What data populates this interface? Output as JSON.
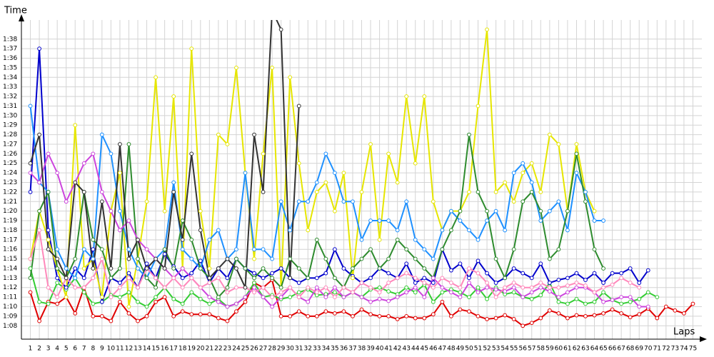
{
  "chart_data": {
    "type": "line",
    "y_label": "Time",
    "x_label": "Laps",
    "xlim": [
      0,
      76
    ],
    "ylim": [
      66.6,
      100
    ],
    "grid": true,
    "x": [
      1,
      2,
      3,
      4,
      5,
      6,
      7,
      8,
      9,
      10,
      11,
      12,
      13,
      14,
      15,
      16,
      17,
      18,
      19,
      20,
      21,
      22,
      23,
      24,
      25,
      26,
      27,
      28,
      29,
      30,
      31,
      32,
      33,
      34,
      35,
      36,
      37,
      38,
      39,
      40,
      41,
      42,
      43,
      44,
      45,
      46,
      47,
      48,
      49,
      50,
      51,
      52,
      53,
      54,
      55,
      56,
      57,
      58,
      59,
      60,
      61,
      62,
      63,
      64,
      65,
      66,
      67,
      68,
      69,
      70,
      71,
      72,
      73,
      74,
      75
    ],
    "xticks": [
      1,
      2,
      3,
      4,
      5,
      6,
      7,
      8,
      9,
      10,
      11,
      12,
      13,
      14,
      15,
      16,
      17,
      18,
      19,
      20,
      21,
      22,
      23,
      24,
      25,
      26,
      27,
      28,
      29,
      30,
      31,
      32,
      33,
      34,
      35,
      36,
      37,
      38,
      39,
      40,
      41,
      42,
      43,
      44,
      45,
      46,
      47,
      48,
      49,
      50,
      51,
      52,
      53,
      54,
      55,
      56,
      57,
      58,
      59,
      60,
      61,
      62,
      63,
      64,
      65,
      66,
      67,
      68,
      69,
      70,
      71,
      72,
      73,
      74,
      75
    ],
    "yticks": [
      {
        "value": 68,
        "label": "1:08"
      },
      {
        "value": 69,
        "label": "1:09"
      },
      {
        "value": 70,
        "label": "1:10"
      },
      {
        "value": 71,
        "label": "1:11"
      },
      {
        "value": 72,
        "label": "1:12"
      },
      {
        "value": 73,
        "label": "1:13"
      },
      {
        "value": 74,
        "label": "1:14"
      },
      {
        "value": 75,
        "label": "1:15"
      },
      {
        "value": 76,
        "label": "1:16"
      },
      {
        "value": 77,
        "label": "1:17"
      },
      {
        "value": 78,
        "label": "1:18"
      },
      {
        "value": 79,
        "label": "1:19"
      },
      {
        "value": 80,
        "label": "1:20"
      },
      {
        "value": 81,
        "label": "1:21"
      },
      {
        "value": 82,
        "label": "1:22"
      },
      {
        "value": 83,
        "label": "1:23"
      },
      {
        "value": 84,
        "label": "1:24"
      },
      {
        "value": 85,
        "label": "1:25"
      },
      {
        "value": 86,
        "label": "1:26"
      },
      {
        "value": 87,
        "label": "1:27"
      },
      {
        "value": 88,
        "label": "1:28"
      },
      {
        "value": 89,
        "label": "1:29"
      },
      {
        "value": 90,
        "label": "1:30"
      },
      {
        "value": 91,
        "label": "1:31"
      },
      {
        "value": 92,
        "label": "1:32"
      },
      {
        "value": 93,
        "label": "1:33"
      },
      {
        "value": 94,
        "label": "1:34"
      },
      {
        "value": 95,
        "label": "1:35"
      },
      {
        "value": 96,
        "label": "1:36"
      },
      {
        "value": 97,
        "label": "1:37"
      },
      {
        "value": 98,
        "label": "1:38"
      }
    ],
    "series": [
      {
        "color": "#e00000",
        "values": [
          71.5,
          68.5,
          70.5,
          70.3,
          71,
          69.3,
          72,
          69,
          69,
          68.5,
          70.5,
          69.3,
          68.5,
          69,
          70.5,
          71,
          69,
          69.5,
          69.2,
          69.2,
          69.2,
          68.8,
          68.5,
          69.5,
          70.5,
          72.5,
          72,
          72.8,
          69,
          69,
          69.5,
          69,
          69,
          69.5,
          69.3,
          69.5,
          69,
          69.7,
          69.2,
          69,
          69,
          68.7,
          69,
          68.8,
          68.8,
          69.2,
          70.5,
          69,
          69.7,
          69.5,
          69,
          68.7,
          68.8,
          69.1,
          68.7,
          68,
          68.3,
          68.8,
          69.6,
          69.3,
          68.8,
          69.1,
          69,
          69.1,
          69.3,
          69.7,
          69.3,
          68.9,
          69.2,
          69.8,
          68.8,
          70,
          69.6,
          69.3,
          70.3
        ]
      },
      {
        "color": "#33cc33",
        "values": [
          74,
          70.5,
          70.3,
          72.5,
          71.8,
          73,
          71.5,
          70.3,
          70.5,
          71.2,
          71,
          71.5,
          70.5,
          70,
          71,
          72,
          70.8,
          70.3,
          71.5,
          70.8,
          70.3,
          70.8,
          70,
          70.3,
          71,
          72.5,
          71,
          71.2,
          70.8,
          71,
          71.5,
          71.8,
          71.2,
          71.3,
          71.5,
          71,
          71.5,
          71,
          71.8,
          72,
          71.6,
          71.3,
          72,
          71.5,
          72.3,
          70.5,
          71.5,
          71.8,
          71.5,
          71,
          72,
          70.8,
          72,
          71.3,
          71.5,
          71,
          70.8,
          71.2,
          72.5,
          70.5,
          70.3,
          70.8,
          70.3,
          70.5,
          71.5,
          70.7,
          70.3,
          70.5,
          70.8,
          71.5,
          71,
          null,
          null,
          null,
          null
        ]
      },
      {
        "color": "#0000cc",
        "values": [
          82,
          97,
          78,
          73,
          72,
          74,
          73,
          76,
          70.5,
          73,
          72.5,
          73.5,
          72,
          74.5,
          73,
          75.5,
          74.2,
          73,
          73.5,
          74.8,
          72.5,
          74,
          73,
          75,
          74,
          73.5,
          73,
          73.5,
          74,
          73,
          72.5,
          73,
          73,
          73.5,
          76,
          74,
          73.2,
          72.5,
          73,
          74,
          73.5,
          73,
          74.5,
          72.5,
          73,
          72.5,
          76,
          73.8,
          74.5,
          73,
          74.8,
          73.5,
          72.5,
          73,
          74,
          73.5,
          73,
          74.5,
          72.5,
          72.8,
          73,
          73.5,
          72.8,
          73.5,
          72.5,
          73.5,
          73.5,
          74,
          72.5,
          73.8,
          null,
          null,
          null,
          null,
          null
        ]
      },
      {
        "color": "#e6e600",
        "values": [
          75,
          80,
          77,
          74,
          71,
          89,
          74,
          75,
          71,
          80,
          84,
          70,
          75,
          81,
          94,
          80,
          92,
          74,
          97,
          80,
          74,
          88,
          87,
          95,
          84,
          75,
          86,
          95,
          72,
          94,
          85,
          78,
          82,
          83,
          80,
          84,
          73,
          82,
          87,
          77,
          86,
          83,
          92,
          85,
          92,
          81,
          78,
          80,
          80,
          82,
          91,
          99,
          82,
          83,
          81,
          84,
          85,
          82,
          88,
          87,
          80,
          87,
          82,
          80,
          null,
          null,
          null,
          null,
          null,
          null,
          null,
          null,
          null,
          null,
          null
        ]
      },
      {
        "color": "#1e90ff",
        "values": [
          91,
          83,
          82,
          76,
          74,
          73,
          76,
          75,
          88,
          86,
          80,
          76,
          74,
          73,
          75,
          76,
          83,
          76,
          75,
          74,
          77,
          78,
          75,
          76,
          84,
          76,
          76,
          75,
          81,
          78,
          81,
          81,
          83,
          86,
          84,
          81,
          81,
          77,
          79,
          79,
          79,
          78,
          81,
          77,
          76,
          75,
          78,
          80,
          79,
          78,
          77,
          79,
          80,
          78,
          84,
          85,
          83,
          79,
          80,
          81,
          78,
          84,
          82,
          79,
          79,
          null,
          null,
          null,
          null,
          null,
          null,
          null,
          null,
          null,
          null
        ]
      },
      {
        "color": "#2e8b2e",
        "values": [
          73,
          80,
          82,
          74,
          73,
          75,
          82,
          77,
          76,
          73,
          74,
          87,
          75,
          73,
          72,
          76,
          74,
          79,
          77,
          74,
          73,
          71,
          72,
          75,
          74,
          73,
          74,
          73,
          72,
          75,
          74,
          73,
          77,
          75,
          73,
          72,
          74,
          75,
          76,
          74,
          75,
          77,
          76,
          75,
          74,
          73,
          76,
          78,
          80,
          88,
          82,
          80,
          75,
          73,
          76,
          81,
          82,
          80,
          75,
          76,
          80,
          86,
          81,
          76,
          74,
          null,
          null,
          null,
          null,
          null,
          null,
          null,
          null,
          null,
          null
        ]
      },
      {
        "color": "#cc44dd",
        "values": [
          84,
          83,
          86,
          84,
          81,
          83,
          85,
          86,
          82,
          80,
          78,
          79,
          77,
          76,
          75,
          74,
          73,
          74,
          73,
          72,
          71,
          70.5,
          70,
          70.3,
          71,
          72,
          71,
          70,
          71,
          72,
          71,
          70.5,
          72,
          71,
          72,
          71,
          71.5,
          71,
          70.5,
          70.8,
          70.6,
          71,
          71.5,
          72,
          71,
          73,
          72,
          71.5,
          71,
          72.5,
          71.5,
          72,
          71.8,
          71.6,
          72,
          71,
          71.5,
          72,
          71.6,
          71,
          71.5,
          72,
          72,
          71.5,
          70.5,
          70.7,
          71,
          71,
          70,
          70,
          null,
          null,
          null,
          null,
          null
        ]
      },
      {
        "color": "#ff88bb",
        "values": [
          75,
          78,
          72,
          71,
          73,
          72,
          72,
          73,
          75,
          71,
          72,
          73,
          72,
          74,
          73,
          72,
          73,
          72,
          73,
          72,
          72.5,
          73,
          71.5,
          72,
          72,
          71.5,
          72,
          71,
          71.5,
          72,
          71,
          72,
          71.5,
          72,
          71,
          72,
          71.5,
          72.5,
          72,
          71.5,
          72.5,
          73,
          73.5,
          73,
          72.5,
          72,
          73,
          72.5,
          72,
          74,
          73.5,
          72.5,
          71,
          72,
          72.5,
          72,
          72,
          72.5,
          72,
          72,
          72.2,
          72.5,
          72.2,
          71.5,
          72,
          72.3,
          73,
          72.5,
          72,
          null,
          null,
          null,
          null,
          null,
          null
        ]
      },
      {
        "color": "#333333",
        "values": [
          85,
          88,
          76,
          75,
          73,
          83,
          82,
          74,
          81,
          74,
          87,
          75,
          77,
          74,
          75,
          74,
          82,
          77,
          86,
          78,
          73,
          74,
          75,
          74,
          72,
          88,
          82,
          101,
          99,
          73,
          91,
          null,
          null,
          null,
          null,
          null,
          null,
          null,
          null,
          null,
          null,
          null,
          null,
          null,
          null,
          null,
          null,
          null,
          null,
          null,
          null,
          null,
          null,
          null,
          null,
          null,
          null,
          null,
          null,
          null,
          null,
          null,
          null,
          null,
          null,
          null,
          null,
          null,
          null,
          null,
          null,
          null,
          null,
          null,
          null
        ]
      }
    ]
  }
}
